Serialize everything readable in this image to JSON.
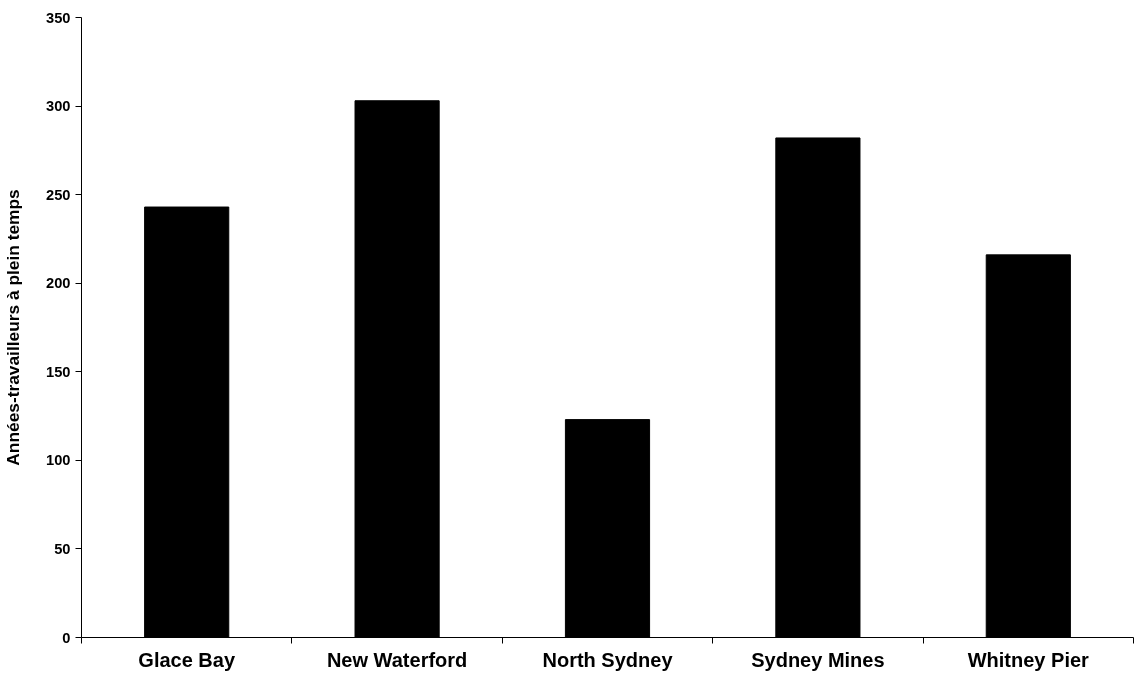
{
  "chart_data": {
    "type": "bar",
    "ylabel": "Années-travailleurs à plein temps",
    "categories": [
      "Glace Bay",
      "New Waterford",
      "North Sydney",
      "Sydney Mines",
      "Whitney Pier"
    ],
    "values": [
      243,
      303,
      123,
      282,
      216
    ],
    "color": "#000000",
    "ylim": [
      0,
      350
    ],
    "yticks": [
      0,
      50,
      100,
      150,
      200,
      250,
      300,
      350
    ],
    "grid": false
  }
}
